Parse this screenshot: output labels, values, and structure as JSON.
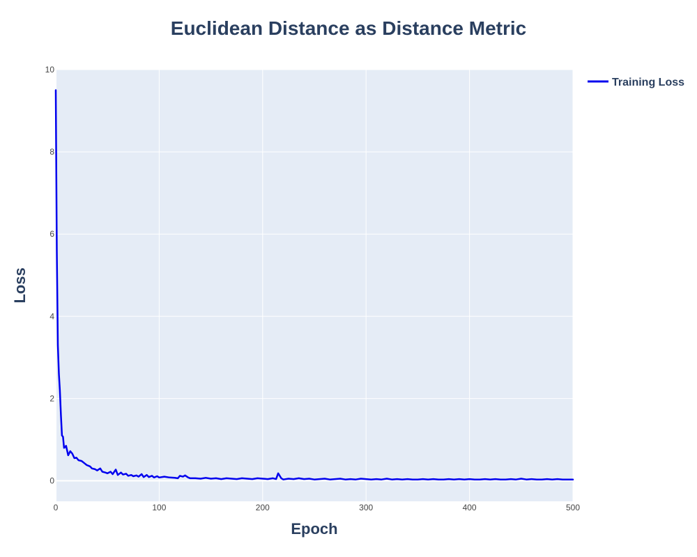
{
  "colors": {
    "background": "#ffffff",
    "plot_background": "#e5ecf6",
    "grid": "#ffffff",
    "text": "#2a3f5f",
    "tick_text": "#444444",
    "series": "#0000ee"
  },
  "chart_data": {
    "type": "line",
    "title": "Euclidean Distance as Distance Metric",
    "xlabel": "Epoch",
    "ylabel": "Loss",
    "xlim": [
      0,
      500
    ],
    "ylim": [
      -0.5,
      10
    ],
    "x_ticks": [
      0,
      100,
      200,
      300,
      400,
      500
    ],
    "y_ticks": [
      0,
      2,
      4,
      6,
      8,
      10
    ],
    "grid": true,
    "legend_position": "top-right",
    "series": [
      {
        "name": "Training Loss",
        "x": [
          0,
          1,
          2,
          3,
          4,
          5,
          6,
          7,
          8,
          9,
          10,
          12,
          14,
          16,
          18,
          20,
          22,
          25,
          28,
          30,
          33,
          35,
          38,
          40,
          43,
          45,
          48,
          50,
          53,
          55,
          58,
          60,
          63,
          65,
          68,
          70,
          73,
          75,
          78,
          80,
          83,
          85,
          88,
          90,
          93,
          95,
          98,
          100,
          105,
          110,
          115,
          118,
          120,
          123,
          125,
          128,
          130,
          135,
          140,
          145,
          150,
          155,
          160,
          165,
          170,
          175,
          180,
          185,
          190,
          195,
          200,
          205,
          210,
          213,
          215,
          218,
          220,
          225,
          230,
          235,
          240,
          245,
          250,
          255,
          260,
          265,
          270,
          275,
          280,
          285,
          290,
          295,
          300,
          305,
          310,
          315,
          320,
          325,
          330,
          335,
          340,
          345,
          350,
          355,
          360,
          365,
          370,
          375,
          380,
          385,
          390,
          395,
          400,
          405,
          410,
          415,
          420,
          425,
          430,
          435,
          440,
          445,
          450,
          455,
          460,
          465,
          470,
          475,
          480,
          485,
          490,
          495,
          500
        ],
        "values": [
          9.5,
          5.6,
          3.3,
          2.6,
          2.2,
          1.6,
          1.1,
          1.07,
          0.8,
          0.82,
          0.85,
          0.62,
          0.72,
          0.66,
          0.55,
          0.56,
          0.5,
          0.48,
          0.42,
          0.38,
          0.35,
          0.3,
          0.28,
          0.25,
          0.3,
          0.22,
          0.2,
          0.18,
          0.22,
          0.16,
          0.27,
          0.14,
          0.2,
          0.15,
          0.17,
          0.12,
          0.14,
          0.11,
          0.13,
          0.1,
          0.16,
          0.09,
          0.14,
          0.09,
          0.12,
          0.08,
          0.11,
          0.08,
          0.1,
          0.08,
          0.07,
          0.06,
          0.12,
          0.1,
          0.13,
          0.08,
          0.06,
          0.06,
          0.05,
          0.07,
          0.05,
          0.06,
          0.04,
          0.06,
          0.05,
          0.04,
          0.06,
          0.05,
          0.04,
          0.06,
          0.05,
          0.04,
          0.06,
          0.04,
          0.18,
          0.06,
          0.03,
          0.05,
          0.04,
          0.06,
          0.04,
          0.05,
          0.03,
          0.04,
          0.05,
          0.03,
          0.04,
          0.05,
          0.03,
          0.04,
          0.03,
          0.05,
          0.04,
          0.03,
          0.04,
          0.03,
          0.05,
          0.03,
          0.04,
          0.03,
          0.04,
          0.03,
          0.03,
          0.04,
          0.03,
          0.04,
          0.03,
          0.03,
          0.04,
          0.03,
          0.04,
          0.03,
          0.04,
          0.03,
          0.03,
          0.04,
          0.03,
          0.04,
          0.03,
          0.03,
          0.04,
          0.03,
          0.05,
          0.03,
          0.04,
          0.03,
          0.03,
          0.04,
          0.03,
          0.04,
          0.03,
          0.03,
          0.03
        ]
      }
    ]
  }
}
